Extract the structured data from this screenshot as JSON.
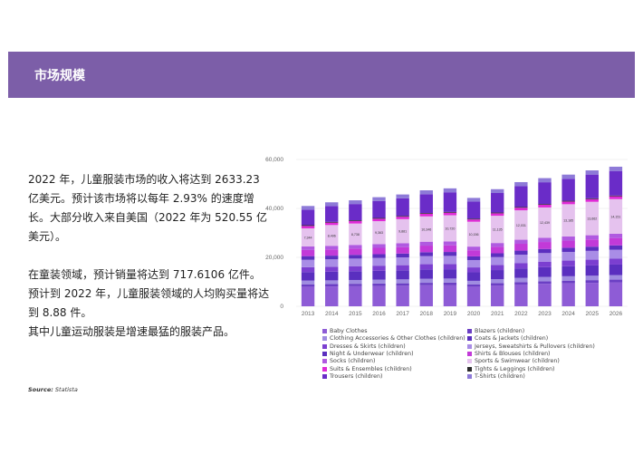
{
  "header": {
    "title": "市场规模"
  },
  "body": {
    "p1": "2022 年，儿童服装市场的收入将达到 2633.23 亿美元。预计该市场将以每年 2.93% 的速度增长。大部分收入来自美国（2022 年为 520.55 亿美元）。",
    "p2a": "在童装领域，预计销量将达到 717.6106 亿件。",
    "p2b": "预计到 2022 年，儿童服装领域的人均购买量将达到 8.88 件。",
    "p2c": "其中儿童运动服装是增速最猛的服装产品。"
  },
  "source": {
    "label": "Source:",
    "value": "Statista"
  },
  "chart_data": {
    "type": "bar",
    "stacked": true,
    "categories": [
      "2013",
      "2014",
      "2015",
      "2016",
      "2017",
      "2018",
      "2019",
      "2020",
      "2021",
      "2022",
      "2023",
      "2024",
      "2025",
      "2026"
    ],
    "yticks": [
      "0",
      "20,000",
      "40,000",
      "60,000"
    ],
    "ylim": [
      0,
      60000
    ],
    "grid": true,
    "legend_position": "bottom",
    "series": [
      {
        "name": "Baby Clothes",
        "color": "#8e5cd6",
        "values": [
          8000,
          8100,
          8200,
          8300,
          8400,
          8600,
          8700,
          8000,
          8500,
          8900,
          9200,
          9400,
          9600,
          9800
        ]
      },
      {
        "name": "Blazers (children)",
        "color": "#6b3fc4",
        "values": [
          1000,
          1000,
          1000,
          1000,
          1000,
          1000,
          1000,
          900,
          1000,
          1000,
          1050,
          1080,
          1100,
          1100
        ]
      },
      {
        "name": "Clothing Accessories & Other Clothes (children)",
        "color": "#9f8ce0",
        "values": [
          1500,
          1500,
          1550,
          1600,
          1600,
          1650,
          1650,
          1500,
          1600,
          1700,
          1750,
          1800,
          1800,
          1850
        ]
      },
      {
        "name": "Coats & Jackets (children)",
        "color": "#5a2fbf",
        "values": [
          3500,
          3550,
          3600,
          3650,
          3700,
          3800,
          3800,
          3500,
          3700,
          3900,
          4000,
          4100,
          4200,
          4300
        ]
      },
      {
        "name": "Dresses & Skirts (children)",
        "color": "#7b3fd0",
        "values": [
          2000,
          2000,
          2050,
          2050,
          2100,
          2150,
          2150,
          2000,
          2100,
          2200,
          2250,
          2300,
          2350,
          2400
        ]
      },
      {
        "name": "Jerseys, Sweatshirts & Pullovers (children)",
        "color": "#a98de6",
        "values": [
          3000,
          3050,
          3100,
          3150,
          3200,
          3300,
          3300,
          3000,
          3200,
          3400,
          3500,
          3550,
          3600,
          3700
        ]
      },
      {
        "name": "Night & Underwear (children)",
        "color": "#5b2fbf",
        "values": [
          1500,
          1500,
          1520,
          1540,
          1560,
          1600,
          1600,
          1500,
          1560,
          1650,
          1680,
          1700,
          1720,
          1750
        ]
      },
      {
        "name": "Shirts & Blouses (children)",
        "color": "#c23ad8",
        "values": [
          2500,
          2520,
          2550,
          2600,
          2620,
          2700,
          2700,
          2500,
          2650,
          2800,
          2850,
          2900,
          2950,
          3000
        ]
      },
      {
        "name": "Socks (children)",
        "color": "#b05ae0",
        "values": [
          1500,
          1500,
          1520,
          1540,
          1560,
          1600,
          1600,
          1500,
          1560,
          1650,
          1680,
          1700,
          1720,
          1750
        ]
      },
      {
        "name": "Sports & Swimwear (children)",
        "color": "#e5c2ee",
        "values": [
          7344,
          8496,
          8738,
          9363,
          9881,
          10346,
          10720,
          10156,
          11135,
          12031,
          12439,
          13185,
          13662,
          14151
        ]
      },
      {
        "name": "Suits & Ensembles (children)",
        "color": "#e02ad6",
        "values": [
          1000,
          1000,
          1000,
          1000,
          1000,
          1050,
          1050,
          950,
          1000,
          1050,
          1080,
          1100,
          1120,
          1150
        ]
      },
      {
        "name": "Tights & Leggings (children)",
        "color": "#2b2b2b",
        "values": [
          300,
          300,
          300,
          300,
          300,
          300,
          300,
          300,
          300,
          300,
          300,
          300,
          300,
          300
        ]
      },
      {
        "name": "Trousers (children)",
        "color": "#6a2cc8",
        "values": [
          6356,
          6484,
          6672,
          6957,
          7219,
          7704,
          8030,
          6994,
          7995,
          8519,
          8921,
          9005,
          9708,
          10049
        ]
      },
      {
        "name": "T-Shirts (children)",
        "color": "#8e7ad8",
        "values": [
          1500,
          1500,
          1520,
          1540,
          1560,
          1600,
          1600,
          1500,
          1560,
          1650,
          1680,
          1700,
          1720,
          1750
        ]
      }
    ],
    "data_labels": [
      "7,344",
      "8,496",
      "8,738",
      "9,363",
      "9,881",
      "10,346",
      "10,720",
      "10,156",
      "11,135",
      "12,031",
      "12,439",
      "13,185",
      "13,662",
      "14,151"
    ],
    "data_label_series": "Sports & Swimwear (children)"
  }
}
